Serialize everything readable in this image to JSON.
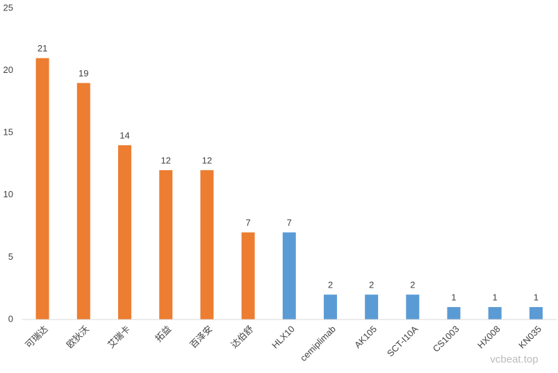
{
  "chart_data": {
    "type": "bar",
    "categories": [
      "可瑞达",
      "欧狄沃",
      "艾瑞卡",
      "拓益",
      "百泽安",
      "达伯舒",
      "HLX10",
      "cemiplimab",
      "AK105",
      "SCT-I10A",
      "CS1003",
      "HX008",
      "KN035"
    ],
    "values": [
      21,
      19,
      14,
      12,
      12,
      7,
      7,
      2,
      2,
      2,
      1,
      1,
      1
    ],
    "colors": [
      "#ed7d31",
      "#ed7d31",
      "#ed7d31",
      "#ed7d31",
      "#ed7d31",
      "#ed7d31",
      "#5b9bd5",
      "#5b9bd5",
      "#5b9bd5",
      "#5b9bd5",
      "#5b9bd5",
      "#5b9bd5",
      "#5b9bd5"
    ],
    "ylim": [
      0,
      25
    ],
    "yticks": [
      0,
      5,
      10,
      15,
      20,
      25
    ],
    "grid": false,
    "watermark": "vcbeat.top"
  }
}
